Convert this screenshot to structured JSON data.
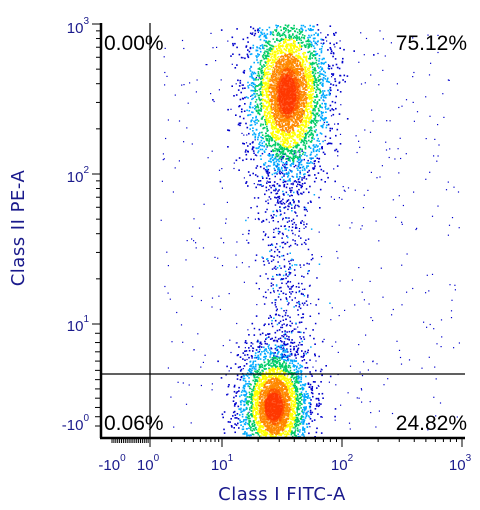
{
  "chart_data": {
    "type": "scatter",
    "subtype": "flow-cytometry density plot with quadrant gates",
    "xlabel": "Class I FITC-A",
    "ylabel": "Class II PE-A",
    "x_scale": "biexponential (log above 10)",
    "y_scale": "biexponential (log above 10)",
    "x_ticks": [
      {
        "base": "-10",
        "exp": "0",
        "value": -1
      },
      {
        "base": "10",
        "exp": "0",
        "value": 1
      },
      {
        "base": "10",
        "exp": "1",
        "value": 10
      },
      {
        "base": "10",
        "exp": "2",
        "value": 100
      },
      {
        "base": "10",
        "exp": "3",
        "value": 1000
      }
    ],
    "y_ticks": [
      {
        "base": "-10",
        "exp": "0",
        "value": -1
      },
      {
        "base": "10",
        "exp": "1",
        "value": 10
      },
      {
        "base": "10",
        "exp": "2",
        "value": 100
      },
      {
        "base": "10",
        "exp": "3",
        "value": 1000
      }
    ],
    "gates": {
      "x_threshold": 1.0,
      "y_threshold": 3.8
    },
    "quadrants": {
      "upper_left": "0.00%",
      "upper_right": "75.12%",
      "lower_left": "0.06%",
      "lower_right": "24.82%"
    },
    "populations": [
      {
        "name": "",
        "x_center": 35,
        "y_center": 350,
        "fraction": 0.7512
      },
      {
        "name": "",
        "x_center": 27,
        "y_center": 1.2,
        "fraction": 0.2482
      }
    ],
    "density_colors": [
      "#0000cc",
      "#00aaff",
      "#00cc66",
      "#ffff00",
      "#ff8800",
      "#ff2200"
    ],
    "grid": false
  }
}
